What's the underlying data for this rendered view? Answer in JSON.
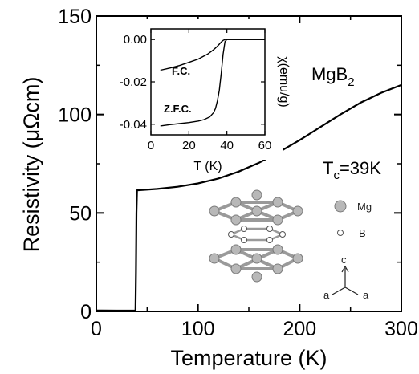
{
  "chart_data": [
    {
      "type": "line",
      "xlabel": "Temperature (K)",
      "ylabel": "Resistivity (μΩcm)",
      "xlim": [
        0,
        300
      ],
      "ylim": [
        0,
        150
      ],
      "xticks": [
        "0",
        "100",
        "200",
        "300"
      ],
      "yticks": [
        "0",
        "50",
        "100",
        "150"
      ],
      "series": [
        {
          "x": [
            0,
            20,
            38.5,
            39,
            39.5,
            40,
            60,
            80,
            100,
            120,
            140,
            160,
            180,
            200,
            220,
            240,
            260,
            280,
            300
          ],
          "y": [
            0.5,
            0.4,
            0.5,
            20,
            50,
            61.5,
            62.2,
            63.3,
            65.0,
            67.5,
            71.0,
            75.5,
            81.0,
            87.0,
            93.5,
            100.0,
            106.0,
            111.0,
            115.0
          ]
        }
      ],
      "annotations": {
        "compound": "MgB",
        "compound_sub": "2",
        "tc_prefix": "T",
        "tc_sub": "c",
        "tc_value": "=39K"
      },
      "grid": false
    },
    {
      "type": "line",
      "xlabel": "T (K)",
      "ylabel": "χ(emu/g)",
      "xlim": [
        0,
        60
      ],
      "ylim": [
        -0.045,
        0.005
      ],
      "xticks": [
        "0",
        "20",
        "40",
        "60"
      ],
      "yticks": [
        "0.00",
        "-0.02",
        "-0.04"
      ],
      "series": [
        {
          "name": "F.C.",
          "x": [
            5,
            10,
            15,
            20,
            25,
            30,
            33,
            35,
            36,
            37,
            38,
            39,
            40,
            50,
            60
          ],
          "y": [
            -0.0145,
            -0.0135,
            -0.0123,
            -0.0108,
            -0.0092,
            -0.0068,
            -0.0048,
            -0.0032,
            -0.0022,
            -0.0012,
            -0.0004,
            0.0,
            0.0,
            0.0,
            0.0
          ]
        },
        {
          "name": "Z.F.C.",
          "x": [
            5,
            10,
            15,
            20,
            25,
            28,
            31,
            33,
            34,
            35,
            36,
            37,
            38,
            39,
            40,
            50,
            60
          ],
          "y": [
            -0.0408,
            -0.0402,
            -0.0397,
            -0.0392,
            -0.0385,
            -0.0378,
            -0.0365,
            -0.0345,
            -0.0325,
            -0.029,
            -0.024,
            -0.016,
            -0.007,
            -0.001,
            0.0,
            0.0,
            0.0
          ]
        }
      ],
      "grid": false
    }
  ],
  "crystal": {
    "legend_mg": "Mg",
    "legend_b": "B",
    "axis_c": "c",
    "axis_a1": "a",
    "axis_a2": "a",
    "mg_color": "#b8b8b8",
    "b_color": "#ffffff",
    "bond_color": "#9a9a9a"
  }
}
